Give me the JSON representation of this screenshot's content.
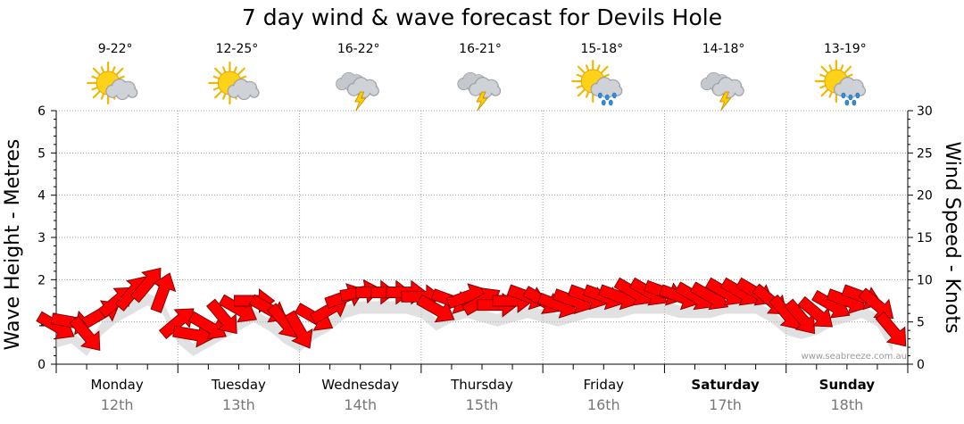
{
  "title": "7 day wind & wave forecast for Devils Hole",
  "credit": "www.seabreeze.com.au",
  "colors": {
    "arrow": "#ff0000",
    "arrow_stroke": "#7a0000",
    "shadow": "#c8c8c8",
    "grid": "#9a9a9a"
  },
  "chart_data": {
    "type": "line",
    "title": "7 day wind & wave forecast for Devils Hole",
    "ylabel": "Wave Height - Metres",
    "ylabel_right": "Wind Speed - Knots",
    "ylim": [
      0,
      6
    ],
    "ylim_right": [
      0,
      30
    ],
    "yticks": [
      0,
      1,
      2,
      3,
      4,
      5,
      6
    ],
    "yticks_right": [
      0,
      5,
      10,
      15,
      20,
      25,
      30
    ],
    "grid": true,
    "days": [
      {
        "day": "Monday",
        "date": "12th",
        "temp": "9-22°",
        "icon": "partly-cloudy-icon",
        "bold": false
      },
      {
        "day": "Tuesday",
        "date": "13th",
        "temp": "12-25°",
        "icon": "partly-cloudy-icon",
        "bold": false
      },
      {
        "day": "Wednesday",
        "date": "14th",
        "temp": "16-22°",
        "icon": "storm-icon",
        "bold": false
      },
      {
        "day": "Thursday",
        "date": "15th",
        "temp": "16-21°",
        "icon": "storm-icon",
        "bold": false
      },
      {
        "day": "Friday",
        "date": "16th",
        "temp": "15-18°",
        "icon": "sun-showers-icon",
        "bold": false
      },
      {
        "day": "Saturday",
        "date": "17th",
        "temp": "14-18°",
        "icon": "storm-icon",
        "bold": true
      },
      {
        "day": "Sunday",
        "date": "18th",
        "temp": "13-19°",
        "icon": "sun-showers-icon",
        "bold": true
      }
    ],
    "series": [
      {
        "kind": "wind",
        "unit": "knots",
        "x_hours": [
          0,
          3,
          6,
          9,
          12,
          15,
          18,
          21,
          24,
          27,
          30,
          33,
          36,
          39,
          42,
          45,
          48,
          51,
          54,
          57,
          60,
          63,
          66,
          69,
          72,
          75,
          78,
          81,
          84,
          87,
          90,
          93,
          96,
          99,
          102,
          105,
          108,
          111,
          114,
          117,
          120,
          123,
          126,
          129,
          132,
          135,
          138,
          141,
          144,
          147,
          150,
          153,
          156,
          159,
          162,
          165
        ],
        "speed": [
          4.5,
          5,
          3.5,
          6,
          7.5,
          8.5,
          9.5,
          8.5,
          5,
          3.5,
          4.5,
          5.5,
          6.5,
          7.5,
          6.5,
          5,
          4,
          5.5,
          6.5,
          8,
          8.5,
          8.5,
          8.5,
          8.5,
          8,
          6.5,
          7.5,
          8,
          7.5,
          7,
          7.5,
          8,
          7.5,
          7,
          7.5,
          8,
          8,
          8,
          8.5,
          8.5,
          8.5,
          8,
          8,
          8,
          8.5,
          8.5,
          8.5,
          7.5,
          6,
          5.5,
          6,
          7,
          7.5,
          8,
          7,
          4
        ],
        "direction_deg": [
          300,
          280,
          320,
          240,
          230,
          220,
          220,
          200,
          230,
          280,
          300,
          320,
          300,
          270,
          300,
          320,
          330,
          300,
          240,
          250,
          260,
          270,
          270,
          270,
          270,
          300,
          290,
          250,
          240,
          270,
          270,
          290,
          300,
          290,
          290,
          290,
          290,
          290,
          300,
          300,
          290,
          290,
          300,
          300,
          300,
          300,
          300,
          310,
          320,
          320,
          310,
          300,
          290,
          290,
          310,
          320
        ]
      }
    ]
  }
}
